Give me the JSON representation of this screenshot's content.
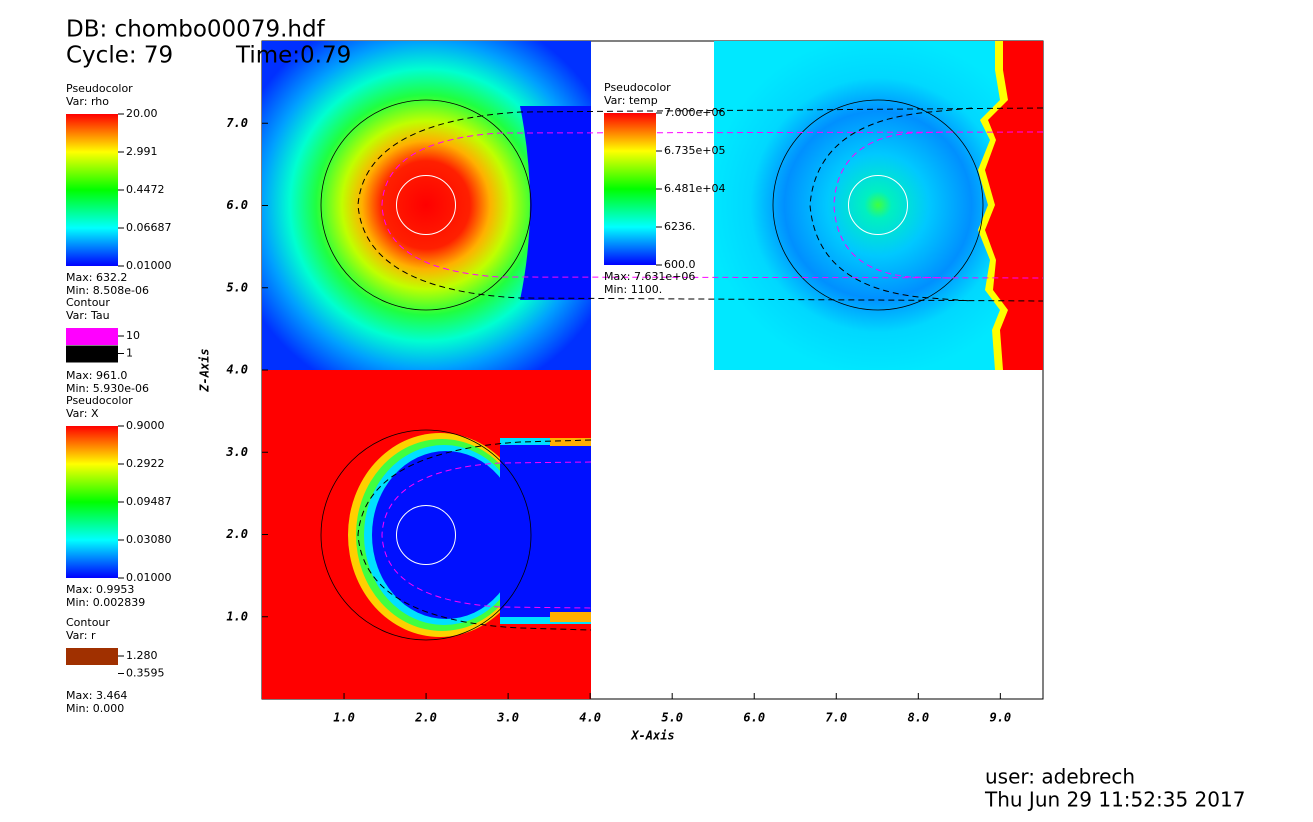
{
  "header": {
    "db": "DB: chombo00079.hdf",
    "cycle": "Cycle: 79",
    "time": "Time:0.79"
  },
  "legends": [
    {
      "kind": "Pseudocolor",
      "var": "Var: rho",
      "labels": [
        "20.00",
        "2.991",
        "0.4472",
        "0.06687",
        "0.01000"
      ],
      "max": "Max: 632.2",
      "min": "Min: 8.508e-06"
    },
    {
      "kind": "Contour",
      "var": "Var: Tau",
      "labels": [
        "10",
        "1"
      ],
      "max": "Max: 961.0",
      "min": "Min: 5.930e-06"
    },
    {
      "kind": "Pseudocolor",
      "var": "Var: X",
      "labels": [
        "0.9000",
        "0.2922",
        "0.09487",
        "0.03080",
        "0.01000"
      ],
      "max": "Max: 0.9953",
      "min": "Min: 0.002839"
    },
    {
      "kind": "Contour",
      "var": "Var: r",
      "labels": [
        "1.280",
        "0.3595"
      ],
      "max": "Max: 3.464",
      "min": "Min: 0.000"
    },
    {
      "kind": "Pseudocolor",
      "var": "Var: temp",
      "labels": [
        "7.000e+06",
        "6.735e+05",
        "6.481e+04",
        "6236.",
        "600.0"
      ],
      "max": "Max: 7.631e+06",
      "min": "Min: 1100."
    }
  ],
  "axes": {
    "x_label": "X-Axis",
    "y_label": "Z-Axis",
    "xlim": [
      0,
      9.52
    ],
    "ylim": [
      0,
      8
    ],
    "xticks": [
      {
        "value": 1,
        "label": "1.0"
      },
      {
        "value": 2,
        "label": "2.0"
      },
      {
        "value": 3,
        "label": "3.0"
      },
      {
        "value": 4,
        "label": "4.0"
      },
      {
        "value": 5,
        "label": "5.0"
      },
      {
        "value": 6,
        "label": "6.0"
      },
      {
        "value": 7,
        "label": "7.0"
      },
      {
        "value": 8,
        "label": "8.0"
      },
      {
        "value": 9,
        "label": "9.0"
      }
    ],
    "yticks": [
      {
        "value": 1,
        "label": "1.0"
      },
      {
        "value": 2,
        "label": "2.0"
      },
      {
        "value": 3,
        "label": "3.0"
      },
      {
        "value": 4,
        "label": "4.0"
      },
      {
        "value": 5,
        "label": "5.0"
      },
      {
        "value": 6,
        "label": "6.0"
      },
      {
        "value": 7,
        "label": "7.0"
      }
    ]
  },
  "footer": {
    "user": "user: adebrech",
    "date": "Thu Jun 29 11:52:35 2017"
  }
}
